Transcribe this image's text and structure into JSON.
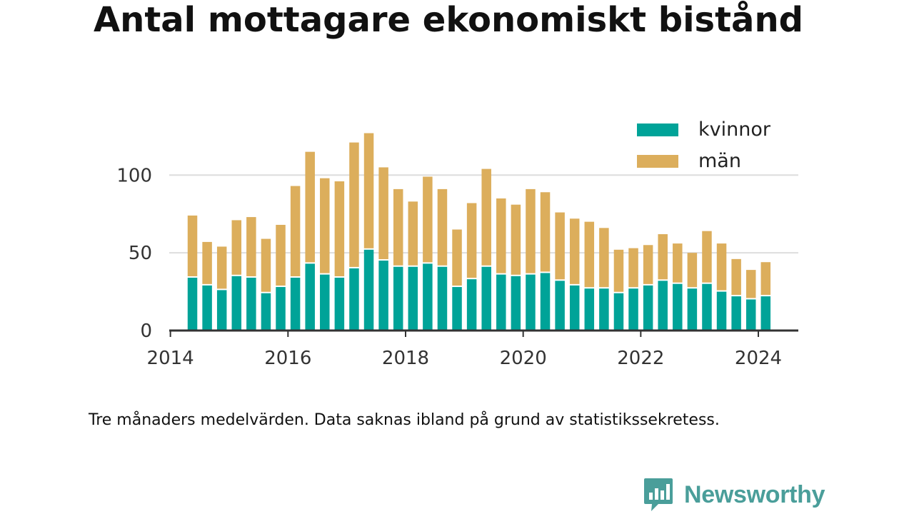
{
  "title": "Antal mottagare ekonomiskt bistånd",
  "note": "Tre månaders medelvärden. Data saknas ibland på grund av statistikssekretess.",
  "brand": {
    "name": "Newsworthy",
    "icon": "bar-chart-speech-bubble-icon",
    "color": "#4a9e9a"
  },
  "colors": {
    "kvinnor": "#00a398",
    "man": "#dcae5c",
    "grid": "#dddddd",
    "axis": "#333333"
  },
  "chart_data": {
    "type": "bar",
    "stacked": true,
    "title": "Antal mottagare ekonomiskt bistånd",
    "xlabel": "",
    "ylabel": "",
    "x": [
      2014.375,
      2014.625,
      2014.875,
      2015.125,
      2015.375,
      2015.625,
      2015.875,
      2016.125,
      2016.375,
      2016.625,
      2016.875,
      2017.125,
      2017.375,
      2017.625,
      2017.875,
      2018.125,
      2018.375,
      2018.625,
      2018.875,
      2019.125,
      2019.375,
      2019.625,
      2019.875,
      2020.125,
      2020.375,
      2020.625,
      2020.875,
      2021.125,
      2021.375,
      2021.625,
      2021.875,
      2022.125,
      2022.375,
      2022.625,
      2022.875,
      2023.125,
      2023.375,
      2023.625,
      2023.875,
      2024.125
    ],
    "series": [
      {
        "name": "kvinnor",
        "color": "#00a398",
        "values": [
          34,
          29,
          26,
          35,
          34,
          24,
          28,
          34,
          43,
          36,
          34,
          40,
          52,
          45,
          41,
          41,
          43,
          41,
          28,
          33,
          41,
          36,
          35,
          36,
          37,
          32,
          29,
          27,
          27,
          24,
          27,
          29,
          32,
          30,
          27,
          30,
          25,
          22,
          20,
          22
        ]
      },
      {
        "name": "män",
        "color": "#dcae5c",
        "values": [
          40,
          28,
          28,
          36,
          39,
          35,
          40,
          59,
          72,
          62,
          62,
          81,
          75,
          60,
          50,
          42,
          56,
          50,
          37,
          49,
          63,
          49,
          46,
          55,
          52,
          44,
          43,
          43,
          39,
          28,
          26,
          26,
          30,
          26,
          23,
          34,
          31,
          24,
          19,
          22
        ]
      }
    ],
    "xticks": [
      "2014",
      "2016",
      "2018",
      "2020",
      "2022",
      "2024"
    ],
    "xtick_values": [
      2014,
      2016,
      2018,
      2020,
      2022,
      2024
    ],
    "yticks": [
      0,
      50,
      100
    ],
    "xlim": [
      2013.98,
      2024.68
    ],
    "ylim": [
      0,
      130
    ],
    "grid": true,
    "legend": {
      "placement": "top-right",
      "entries": [
        "kvinnor",
        "män"
      ]
    }
  }
}
